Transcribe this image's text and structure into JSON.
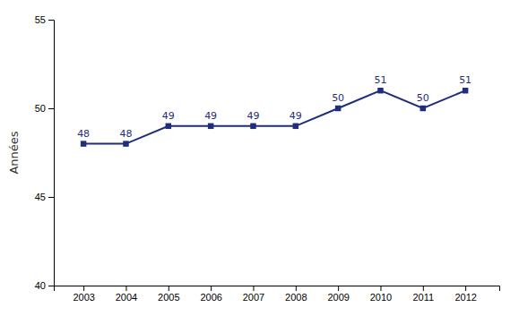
{
  "chart_data": {
    "type": "line",
    "ylabel": "Années",
    "x": [
      2003,
      2004,
      2005,
      2006,
      2007,
      2008,
      2009,
      2010,
      2011,
      2012
    ],
    "values": [
      48,
      48,
      49,
      49,
      49,
      49,
      50,
      51,
      50,
      51
    ],
    "color": "#1F2D7B",
    "marker": "square",
    "data_labels": true,
    "xlim": [
      2002.3,
      2012.8
    ],
    "xticks": [
      2003,
      2004,
      2005,
      2006,
      2007,
      2008,
      2009,
      2010,
      2011,
      2012
    ],
    "ylim": [
      40,
      55
    ],
    "yticks": [
      40,
      45,
      50,
      55
    ],
    "grid": false
  }
}
